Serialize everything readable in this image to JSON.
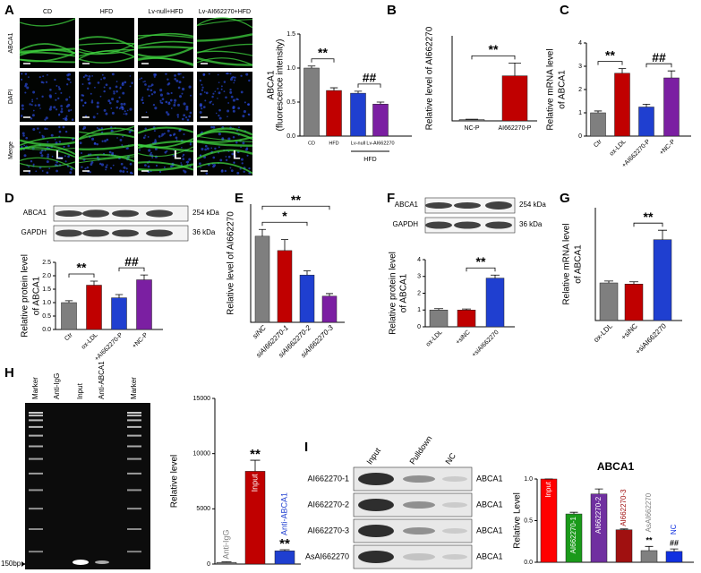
{
  "panel_labels": [
    "A",
    "B",
    "C",
    "D",
    "E",
    "F",
    "G",
    "H",
    "I"
  ],
  "micrograph": {
    "columns": [
      "CD",
      "HFD",
      "Lv-null+HFD",
      "Lv-AI662270+HFD"
    ],
    "rows": [
      "ABCA1",
      "DAPI",
      "Merge"
    ],
    "lumen": "L"
  },
  "blot_D": {
    "bands": [
      "ABCA1",
      "GAPDH"
    ],
    "sizes": [
      "254 kDa",
      "36 kDa"
    ]
  },
  "blot_F": {
    "bands": [
      "ABCA1",
      "GAPDH"
    ],
    "sizes": [
      "254 kDa",
      "36 kDa"
    ]
  },
  "gel_H": {
    "lanes": [
      "Marker",
      "Anti-IgG",
      "Input",
      "Anti-ABCA1",
      "Marker"
    ],
    "marker": "150bp"
  },
  "blot_I": {
    "lanes": [
      "Input",
      "Pulldown",
      "NC"
    ],
    "rows": [
      "AI662270-1",
      "AI662270-2",
      "AI662270-3",
      "AsAI662270"
    ],
    "band": "ABCA1"
  },
  "chart_data": [
    {
      "type": "bar",
      "ylabel": [
        "ABCA1",
        "(fluorescence intensity)"
      ],
      "categories": [
        "CD",
        "HFD",
        "Lv-null",
        "Lv-AI662270"
      ],
      "values": [
        1.0,
        0.67,
        0.63,
        0.47
      ],
      "errors": [
        0.03,
        0.04,
        0.03,
        0.03
      ],
      "colors": [
        "#7f7f7f",
        "#c00000",
        "#1f3fd0",
        "#7b1fa2"
      ],
      "ylim": [
        0,
        1.5
      ],
      "yticks": [
        {
          "value": 0,
          "label": "0.0"
        },
        {
          "value": 0.5,
          "label": "0.5"
        },
        {
          "value": 1,
          "label": "1.0"
        },
        {
          "value": 1.5,
          "label": "1.5"
        }
      ],
      "annotations": [
        "**",
        "##"
      ],
      "group_label": "HFD"
    },
    {
      "type": "bar",
      "ylabel": [
        "Relative level of AI662270"
      ],
      "categories": [
        "NC-P",
        "AI662270-P"
      ],
      "values": [
        1.5,
        53
      ],
      "errors": [
        0.5,
        15
      ],
      "colors": [
        "#7f7f7f",
        "#c00000"
      ],
      "ylim": [
        0,
        100
      ],
      "annotations": [
        "**"
      ]
    },
    {
      "type": "bar",
      "ylabel": [
        "Relative mRNA level",
        "of ABCA1"
      ],
      "categories": [
        "Ctr",
        "ox-LDL",
        "+AI662270-P",
        "+NC-P"
      ],
      "values": [
        1.0,
        2.7,
        1.25,
        2.5
      ],
      "errors": [
        0.08,
        0.2,
        0.12,
        0.3
      ],
      "colors": [
        "#7f7f7f",
        "#c00000",
        "#1f3fd0",
        "#7b1fa2"
      ],
      "ylim": [
        0,
        4
      ],
      "yticks": [
        0,
        1,
        2,
        3,
        4
      ],
      "annotations": [
        "**",
        "##"
      ]
    },
    {
      "type": "bar",
      "ylabel": [
        "Relative protein level",
        "of ABCA1"
      ],
      "categories": [
        "Ctr",
        "ox-LDL",
        "+AI662270-P",
        "+NC-P"
      ],
      "values": [
        1.0,
        1.65,
        1.18,
        1.85
      ],
      "errors": [
        0.07,
        0.15,
        0.12,
        0.18
      ],
      "colors": [
        "#7f7f7f",
        "#c00000",
        "#1f3fd0",
        "#7b1fa2"
      ],
      "ylim": [
        0,
        2.5
      ],
      "yticks": [
        {
          "value": 0,
          "label": "0.0"
        },
        {
          "value": 0.5,
          "label": "0.5"
        },
        {
          "value": 1,
          "label": "1.0"
        },
        {
          "value": 1.5,
          "label": "1.5"
        },
        {
          "value": 2,
          "label": "2.0"
        },
        {
          "value": 2.5,
          "label": "2.5"
        }
      ],
      "annotations": [
        "**",
        "##"
      ]
    },
    {
      "type": "bar",
      "ylabel": [
        "Relative level of AI662270"
      ],
      "categories": [
        "siNC",
        "siAI662270-1",
        "siAI662270-2",
        "siAI662270-3"
      ],
      "values": [
        1.02,
        0.85,
        0.56,
        0.31
      ],
      "errors": [
        0.08,
        0.13,
        0.05,
        0.03
      ],
      "colors": [
        "#7f7f7f",
        "#c00000",
        "#1f3fd0",
        "#7b1fa2"
      ],
      "ylim": [
        0,
        1.4
      ],
      "annotations": [
        "*",
        "**"
      ]
    },
    {
      "type": "bar",
      "ylabel": [
        "Relative protein level",
        "of ABCA1"
      ],
      "categories": [
        "ox-LDL",
        "+siNC",
        "+siAI662270"
      ],
      "values": [
        1.0,
        1.0,
        2.9
      ],
      "errors": [
        0.08,
        0.06,
        0.18
      ],
      "colors": [
        "#7f7f7f",
        "#c00000",
        "#1f3fd0"
      ],
      "ylim": [
        0,
        4
      ],
      "yticks": [
        0,
        1,
        2,
        3,
        4
      ],
      "annotations": [
        "**"
      ]
    },
    {
      "type": "bar",
      "ylabel": [
        "Relative mRNA level",
        "of ABCA1"
      ],
      "categories": [
        "ox-LDL",
        "+siNC",
        "+siAI662270"
      ],
      "values": [
        1.0,
        0.97,
        2.15
      ],
      "errors": [
        0.05,
        0.06,
        0.25
      ],
      "colors": [
        "#7f7f7f",
        "#c00000",
        "#1f3fd0"
      ],
      "ylim": [
        0,
        3
      ],
      "annotations": [
        "**"
      ]
    },
    {
      "type": "bar",
      "ylabel": [
        "Relative level"
      ],
      "categories": [
        "Anti-IgG",
        "Input",
        "Anti-ABCA1"
      ],
      "values": [
        150,
        8400,
        1200
      ],
      "errors": [
        50,
        1000,
        100
      ],
      "colors": [
        "#7f7f7f",
        "#c00000",
        "#1f3fd0"
      ],
      "ylim": [
        0,
        15000
      ],
      "yticks": [
        0,
        5000,
        10000,
        15000
      ],
      "annotations": [
        "**",
        "**"
      ]
    },
    {
      "type": "bar",
      "title": "ABCA1",
      "ylabel": [
        "Relative Level"
      ],
      "categories": [
        "Input",
        "AI662270-1",
        "AI662270-2",
        "AI662270-3",
        "AsAI662270",
        "NC"
      ],
      "values": [
        1.0,
        0.58,
        0.82,
        0.39,
        0.14,
        0.13
      ],
      "errors": [
        0,
        0.02,
        0.06,
        0.01,
        0.05,
        0.03
      ],
      "colors": [
        "#ff0000",
        "#1a9a1a",
        "#7030a0",
        "#a01010",
        "#808080",
        "#1030e0"
      ],
      "ylim": [
        0,
        1
      ],
      "yticks": [
        {
          "value": 0,
          "label": "0.0"
        },
        {
          "value": 0.5,
          "label": "0.5"
        },
        {
          "value": 1,
          "label": "1.0"
        }
      ],
      "annotations": [
        "**",
        "##"
      ]
    }
  ]
}
